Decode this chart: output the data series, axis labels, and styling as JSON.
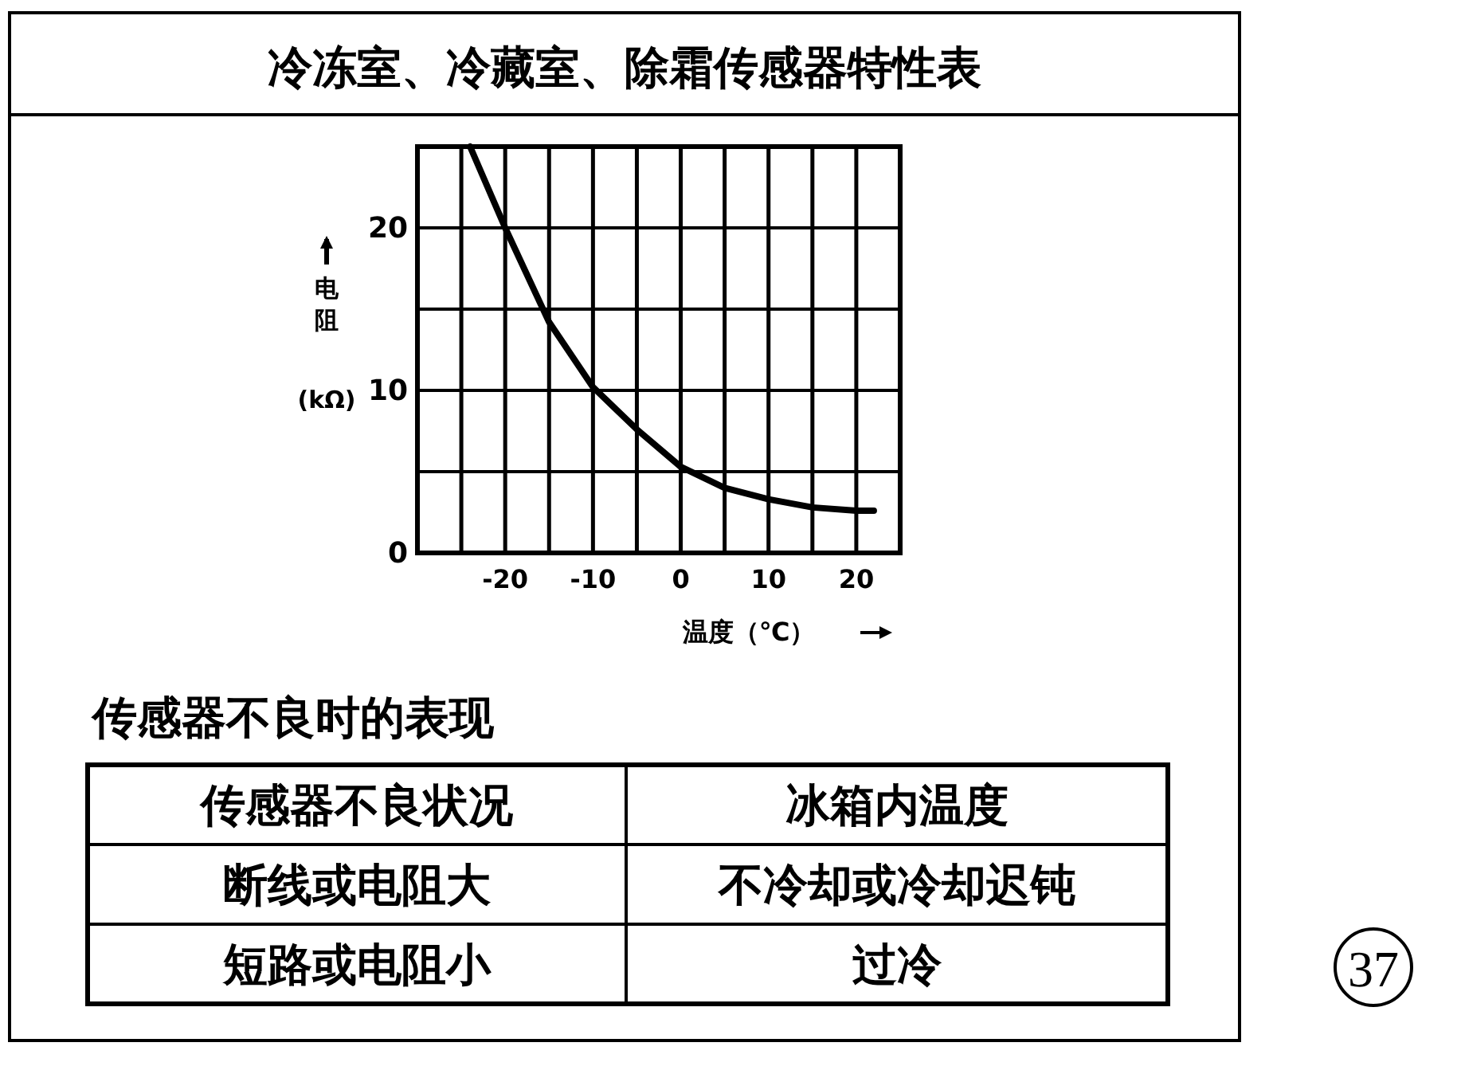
{
  "chart_data": {
    "type": "line",
    "title": "冷冻室、冷藏室、除霜传感器特性表",
    "xlabel": "温度（℃）",
    "ylabel": "电阻 (kΩ)",
    "x": [
      -24,
      -20,
      -15,
      -10,
      -5,
      0,
      5,
      10,
      15,
      20,
      22
    ],
    "series": [
      {
        "color": "#000000",
        "values": [
          25,
          20,
          14.2,
          10.2,
          7.6,
          5.3,
          4,
          3.3,
          2.8,
          2.6,
          2.6
        ]
      }
    ],
    "xlim": [
      -30,
      25
    ],
    "ylim": [
      0,
      25
    ],
    "xticks": [
      {
        "value": -25,
        "label": null
      },
      -20,
      {
        "value": -15,
        "label": null
      },
      -10,
      {
        "value": -5,
        "label": null
      },
      0,
      {
        "value": 5,
        "label": null
      },
      10,
      {
        "value": 15,
        "label": null
      },
      20
    ],
    "yticks": [
      0,
      {
        "value": 5,
        "label": null
      },
      10,
      {
        "value": 15,
        "label": null
      },
      20
    ],
    "grid": true,
    "marker": "none",
    "line_style": "solid",
    "annotations": [
      "传感器不良时的表现",
      "传感器不良状况",
      "冰箱内温度",
      "断线或电阻大",
      "不冷却或冷却迟钝",
      "短路或电阻小",
      "过冷",
      "37"
    ]
  }
}
